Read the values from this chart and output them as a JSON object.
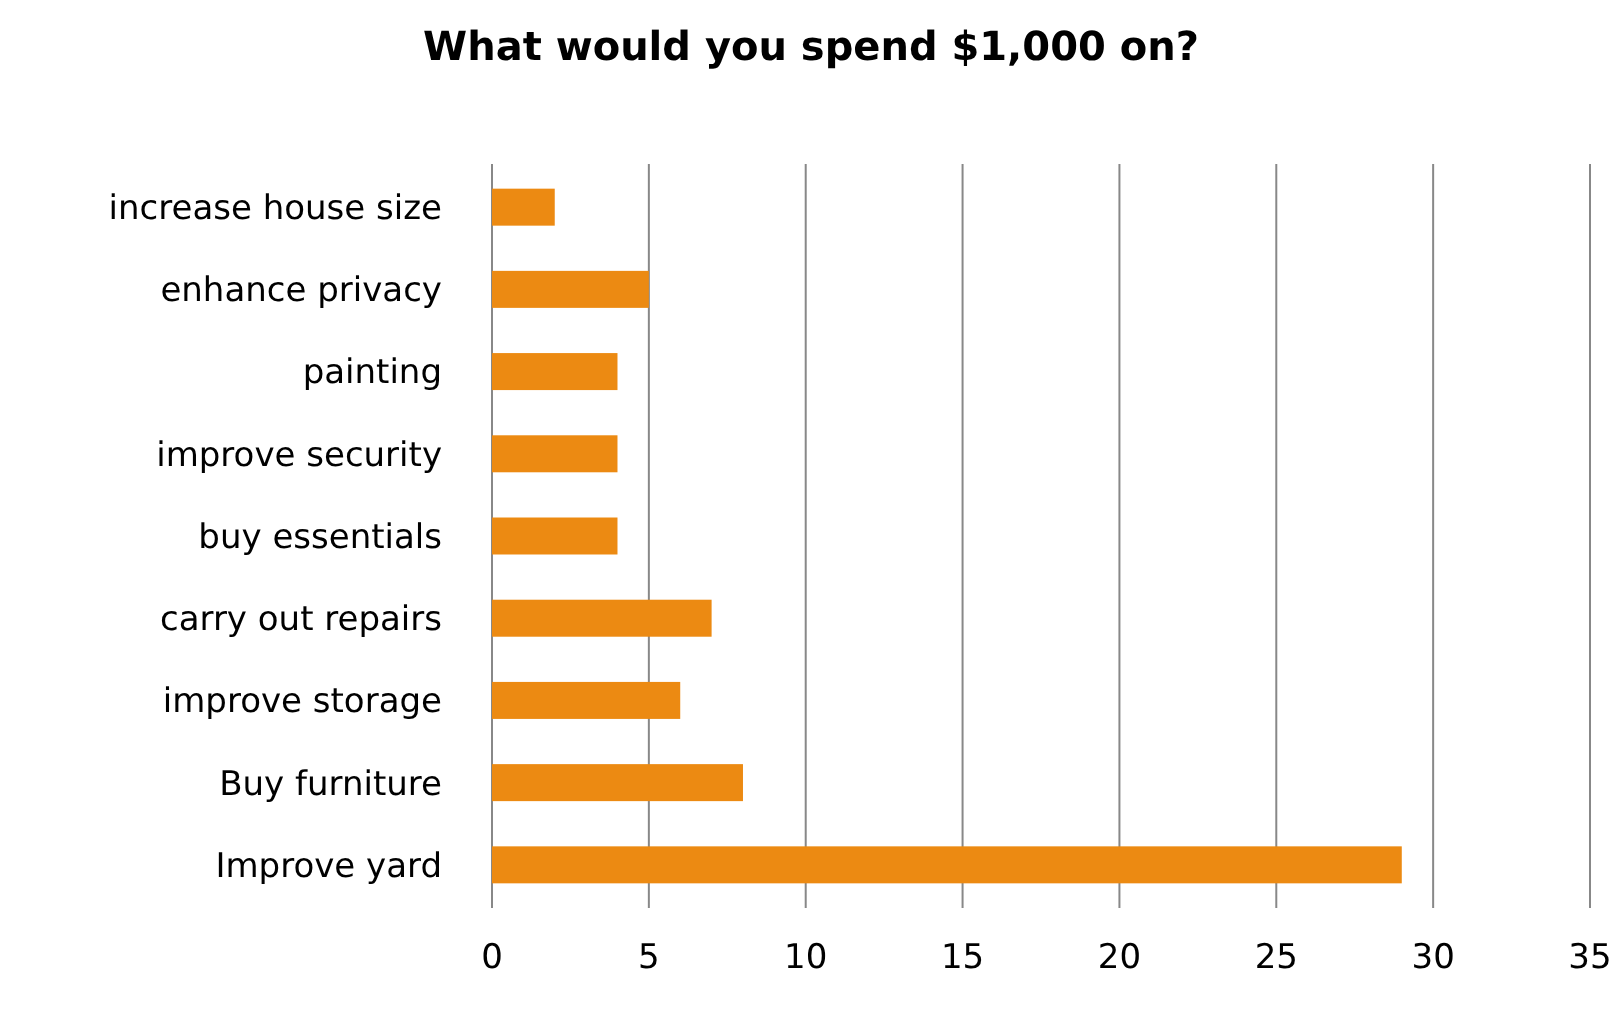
{
  "chart_data": {
    "type": "bar",
    "orientation": "horizontal",
    "title": "What would you spend $1,000 on?",
    "categories": [
      "increase house size",
      "enhance privacy",
      "painting",
      "improve security",
      "buy essentials",
      "carry out repairs",
      "improve storage",
      "Buy furniture",
      "Improve yard"
    ],
    "values": [
      2,
      5,
      4,
      4,
      4,
      7,
      6,
      8,
      29
    ],
    "color": "#ec8a12",
    "xlim": [
      0,
      35
    ],
    "xticks": [
      0,
      5,
      10,
      15,
      20,
      25,
      30,
      35
    ],
    "grid": "x"
  }
}
